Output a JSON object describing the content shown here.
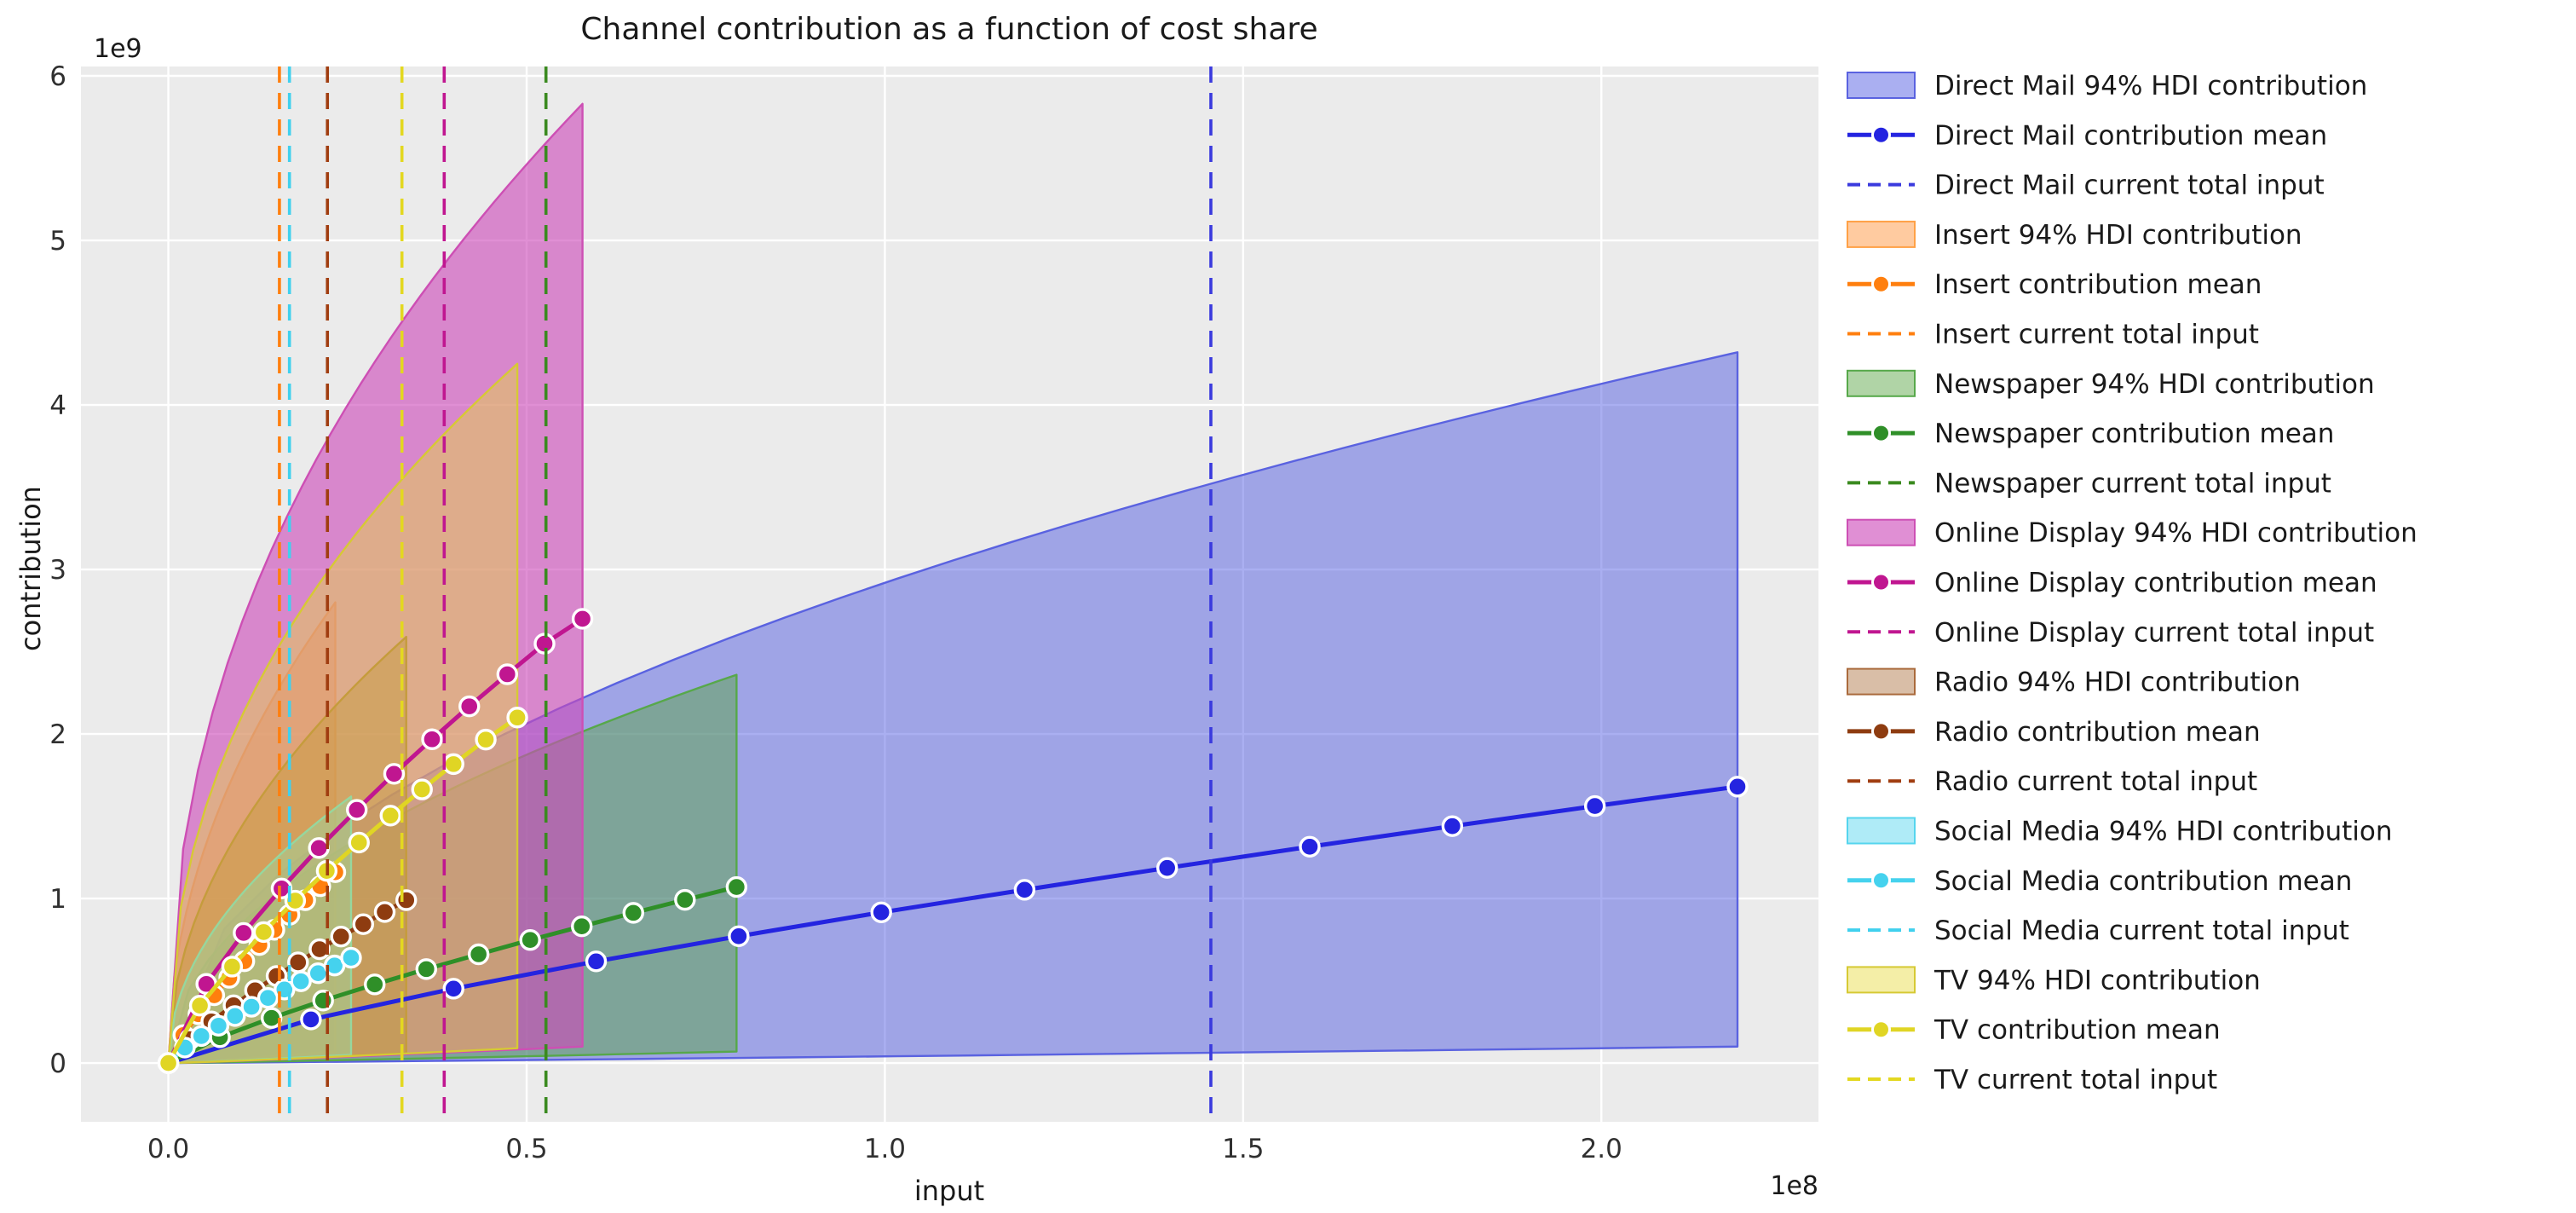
{
  "figure": {
    "title": "Channel contribution as a function of cost share",
    "xlabel": "input",
    "ylabel": "contribution",
    "x_offset_label": "1e8",
    "y_offset_label": "1e9",
    "background": "#ffffff",
    "axes_background": "#ebebeb",
    "grid_color": "#ffffff",
    "tick_color": "#303030"
  },
  "chart_data": {
    "type": "area",
    "title": "Channel contribution as a function of cost share",
    "xlabel": "input",
    "ylabel": "contribution",
    "x_units_multiplier": "1e8",
    "y_units_multiplier": "1e9",
    "grid": true,
    "legend_position": "right-outside",
    "xlim": [
      -0.122,
      2.303
    ],
    "ylim": [
      -0.357,
      6.057
    ],
    "xticks": {
      "values": [
        0,
        0.5,
        1.0,
        1.5,
        2.0
      ],
      "labels": [
        "0.0",
        "0.5",
        "1.0",
        "1.5",
        "2.0"
      ]
    },
    "yticks": {
      "values": [
        0,
        1,
        2,
        3,
        4,
        5,
        6
      ],
      "labels": [
        "0",
        "1",
        "2",
        "3",
        "4",
        "5",
        "6"
      ]
    },
    "channels": [
      {
        "name": "Direct Mail",
        "slug": "direct-mail",
        "colors": {
          "line": "#2424e0",
          "vline": "#3a3ade",
          "band_fill": "rgba(75,85,225,0.47)",
          "band_edge": "#5a62e0"
        },
        "hdi": {
          "x_end": 2.19,
          "upper_end": 4.32,
          "lower_end": 0.1,
          "upper_exp": 0.5,
          "lower_exp": 1.15
        },
        "mean": {
          "x": [
            0,
            0.199,
            0.398,
            0.597,
            0.796,
            0.995,
            1.195,
            1.394,
            1.593,
            1.792,
            1.991,
            2.19
          ],
          "y": [
            0,
            0.265,
            0.452,
            0.618,
            0.771,
            0.916,
            1.053,
            1.186,
            1.315,
            1.44,
            1.562,
            1.68
          ]
        },
        "current_input": 1.455,
        "labels": {
          "hdi": "Direct Mail 94% HDI contribution",
          "mean": "Direct Mail contribution mean",
          "input": "Direct Mail current total input"
        }
      },
      {
        "name": "Insert",
        "slug": "insert",
        "colors": {
          "line": "#ff7f0e",
          "vline": "#ff7f0e",
          "band_fill": "rgba(255,140,45,0.45)",
          "band_edge": "#ffa146"
        },
        "hdi": {
          "x_end": 0.233,
          "upper_end": 2.8,
          "lower_end": 0.07,
          "upper_exp": 0.5,
          "lower_exp": 1.15
        },
        "mean": {
          "x": [
            0,
            0.021,
            0.042,
            0.064,
            0.085,
            0.106,
            0.127,
            0.148,
            0.169,
            0.191,
            0.212,
            0.233
          ],
          "y": [
            0,
            0.17,
            0.297,
            0.412,
            0.518,
            0.619,
            0.717,
            0.81,
            0.901,
            0.99,
            1.075,
            1.16
          ]
        },
        "current_input": 0.155,
        "labels": {
          "hdi": "Insert 94% HDI contribution",
          "mean": "Insert contribution mean",
          "input": "Insert current total input"
        }
      },
      {
        "name": "Newspaper",
        "slug": "newspaper",
        "colors": {
          "line": "#2f8f28",
          "vline": "#3a8a1f",
          "band_fill": "rgba(90,165,70,0.48)",
          "band_edge": "#57a84a"
        },
        "hdi": {
          "x_end": 0.793,
          "upper_end": 2.36,
          "lower_end": 0.07,
          "upper_exp": 0.5,
          "lower_exp": 1.15
        },
        "mean": {
          "x": [
            0,
            0.072,
            0.144,
            0.216,
            0.288,
            0.36,
            0.433,
            0.505,
            0.577,
            0.649,
            0.721,
            0.793
          ],
          "y": [
            0,
            0.157,
            0.274,
            0.38,
            0.478,
            0.571,
            0.661,
            0.748,
            0.831,
            0.913,
            0.992,
            1.07
          ]
        },
        "current_input": 0.527,
        "labels": {
          "hdi": "Newspaper 94% HDI contribution",
          "mean": "Newspaper contribution mean",
          "input": "Newspaper current total input"
        }
      },
      {
        "name": "Online Display",
        "slug": "online-display",
        "colors": {
          "line": "#c01690",
          "vline": "#c01690",
          "band_fill": "rgba(205,75,185,0.62)",
          "band_edge": "#cd4fb4"
        },
        "hdi": {
          "x_end": 0.578,
          "upper_end": 5.83,
          "lower_end": 0.1,
          "upper_exp": 0.45,
          "lower_exp": 1.15
        },
        "mean": {
          "x": [
            0,
            0.053,
            0.105,
            0.158,
            0.21,
            0.263,
            0.315,
            0.368,
            0.42,
            0.473,
            0.525,
            0.578
          ],
          "y": [
            0,
            0.481,
            0.791,
            1.061,
            1.307,
            1.539,
            1.758,
            1.968,
            2.168,
            2.363,
            2.549,
            2.7
          ]
        },
        "current_input": 0.385,
        "labels": {
          "hdi": "Online Display 94% HDI contribution",
          "mean": "Online Display contribution mean",
          "input": "Online Display current total input"
        }
      },
      {
        "name": "Radio",
        "slug": "radio",
        "colors": {
          "line": "#8e3c10",
          "vline": "#a03d10",
          "band_fill": "rgba(165,100,45,0.42)",
          "band_edge": "#aa6a3c"
        },
        "hdi": {
          "x_end": 0.332,
          "upper_end": 2.59,
          "lower_end": 0.06,
          "upper_exp": 0.5,
          "lower_exp": 1.15
        },
        "mean": {
          "x": [
            0,
            0.03,
            0.06,
            0.091,
            0.121,
            0.151,
            0.181,
            0.211,
            0.241,
            0.272,
            0.302,
            0.332
          ],
          "y": [
            0,
            0.145,
            0.253,
            0.351,
            0.442,
            0.529,
            0.612,
            0.692,
            0.769,
            0.844,
            0.918,
            0.99
          ]
        },
        "current_input": 0.222,
        "labels": {
          "hdi": "Radio 94% HDI contribution",
          "mean": "Radio contribution mean",
          "input": "Radio current total input"
        }
      },
      {
        "name": "Social Media",
        "slug": "social-media",
        "colors": {
          "line": "#45d2ee",
          "vline": "#40d0ee",
          "band_fill": "rgba(95,215,240,0.5)",
          "band_edge": "#55d5ee"
        },
        "hdi": {
          "x_end": 0.255,
          "upper_end": 1.62,
          "lower_end": 0.05,
          "upper_exp": 0.5,
          "lower_exp": 1.15
        },
        "mean": {
          "x": [
            0,
            0.023,
            0.046,
            0.07,
            0.093,
            0.116,
            0.139,
            0.162,
            0.185,
            0.209,
            0.232,
            0.255
          ],
          "y": [
            0,
            0.094,
            0.164,
            0.227,
            0.286,
            0.342,
            0.396,
            0.447,
            0.497,
            0.546,
            0.593,
            0.64
          ]
        },
        "current_input": 0.169,
        "labels": {
          "hdi": "Social Media 94% HDI contribution",
          "mean": "Social Media contribution mean",
          "input": "Social Media current total input"
        }
      },
      {
        "name": "TV",
        "slug": "tv",
        "colors": {
          "line": "#e0d524",
          "vline": "#e3d820",
          "band_fill": "rgba(230,218,60,0.45)",
          "band_edge": "#d6c934"
        },
        "hdi": {
          "x_end": 0.487,
          "upper_end": 4.25,
          "lower_end": 0.09,
          "upper_exp": 0.45,
          "lower_exp": 1.15
        },
        "mean": {
          "x": [
            0,
            0.044,
            0.089,
            0.133,
            0.177,
            0.221,
            0.266,
            0.31,
            0.354,
            0.398,
            0.443,
            0.487
          ],
          "y": [
            0,
            0.349,
            0.586,
            0.796,
            0.987,
            1.168,
            1.34,
            1.504,
            1.663,
            1.817,
            1.966,
            2.1
          ]
        },
        "current_input": 0.326,
        "labels": {
          "hdi": "TV 94% HDI contribution",
          "mean": "TV contribution mean",
          "input": "TV current total input"
        }
      }
    ],
    "legend_kinds": [
      "hdi",
      "mean",
      "input"
    ]
  },
  "layout_note": "values in x are multiples of 1e8, values in y are multiples of 1e9"
}
